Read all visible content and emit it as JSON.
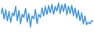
{
  "chart_data": {
    "type": "line",
    "color": "#3a8fd6",
    "tick_labels": false,
    "grid": false,
    "categories": [
      null,
      null,
      null,
      null,
      null,
      null,
      null,
      null,
      null,
      null,
      null,
      null,
      null,
      null,
      null,
      null,
      null,
      null,
      null,
      null,
      null,
      null,
      null,
      null,
      null,
      null,
      null,
      null,
      null,
      null,
      null,
      null,
      null,
      null,
      null,
      null,
      null,
      null,
      null,
      null,
      null,
      null,
      null,
      null,
      null,
      null,
      null,
      null,
      null,
      null,
      null,
      null,
      null,
      null,
      null,
      null,
      null
    ],
    "values": [
      60,
      80,
      45,
      75,
      40,
      70,
      35,
      65,
      55,
      85,
      40,
      72,
      30,
      60,
      50,
      78,
      35,
      62,
      20,
      55,
      45,
      75,
      30,
      60,
      50,
      80,
      55,
      85,
      60,
      88,
      65,
      92,
      60,
      85,
      70,
      95,
      62,
      90,
      68,
      93,
      58,
      85,
      62,
      88,
      55,
      80,
      48,
      72,
      40,
      65,
      30,
      55,
      28,
      35,
      30,
      40,
      38
    ],
    "ylim": [
      0,
      100
    ]
  }
}
